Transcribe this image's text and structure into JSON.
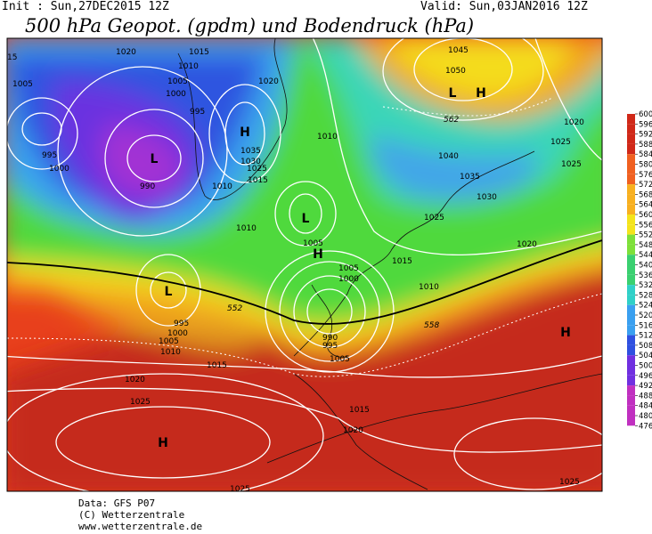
{
  "header": {
    "init": "Init : Sun,27DEC2015 12Z",
    "valid": "Valid: Sun,03JAN2016 12Z",
    "title": "500 hPa Geopot. (gpdm) und Bodendruck (hPa)"
  },
  "isobar_labels": [
    "1020",
    "1015",
    "1010",
    "1005",
    "1000",
    "995",
    "990",
    "995",
    "1000",
    "1005",
    "15",
    "1020",
    "1035",
    "1030",
    "1025",
    "1015",
    "1010",
    "1010",
    "1005",
    "1010",
    "1005",
    "1000",
    "995",
    "990",
    "1005",
    "1015",
    "1010",
    "1020",
    "1025",
    "1025",
    "1020",
    "1040",
    "1035",
    "1030",
    "1025",
    "1045",
    "1050",
    "1015",
    "1020",
    "1025",
    "1010",
    "1005",
    "1000",
    "995",
    "1015",
    "1020",
    "1025",
    "1025"
  ],
  "contour_labels": [
    "552",
    "558",
    "562"
  ],
  "centers": [
    "L",
    "L",
    "L",
    "L",
    "H",
    "H",
    "H",
    "H",
    "H"
  ],
  "colorbar": {
    "ticks": [
      600,
      596,
      592,
      588,
      584,
      580,
      576,
      572,
      568,
      564,
      560,
      556,
      552,
      548,
      544,
      540,
      536,
      532,
      528,
      524,
      520,
      516,
      512,
      508,
      504,
      500,
      496,
      492,
      488,
      484,
      480,
      476
    ]
  },
  "footer": [
    "Data: GFS P07",
    "(C) Wetterzentrale",
    "www.wetterzentrale.de"
  ]
}
